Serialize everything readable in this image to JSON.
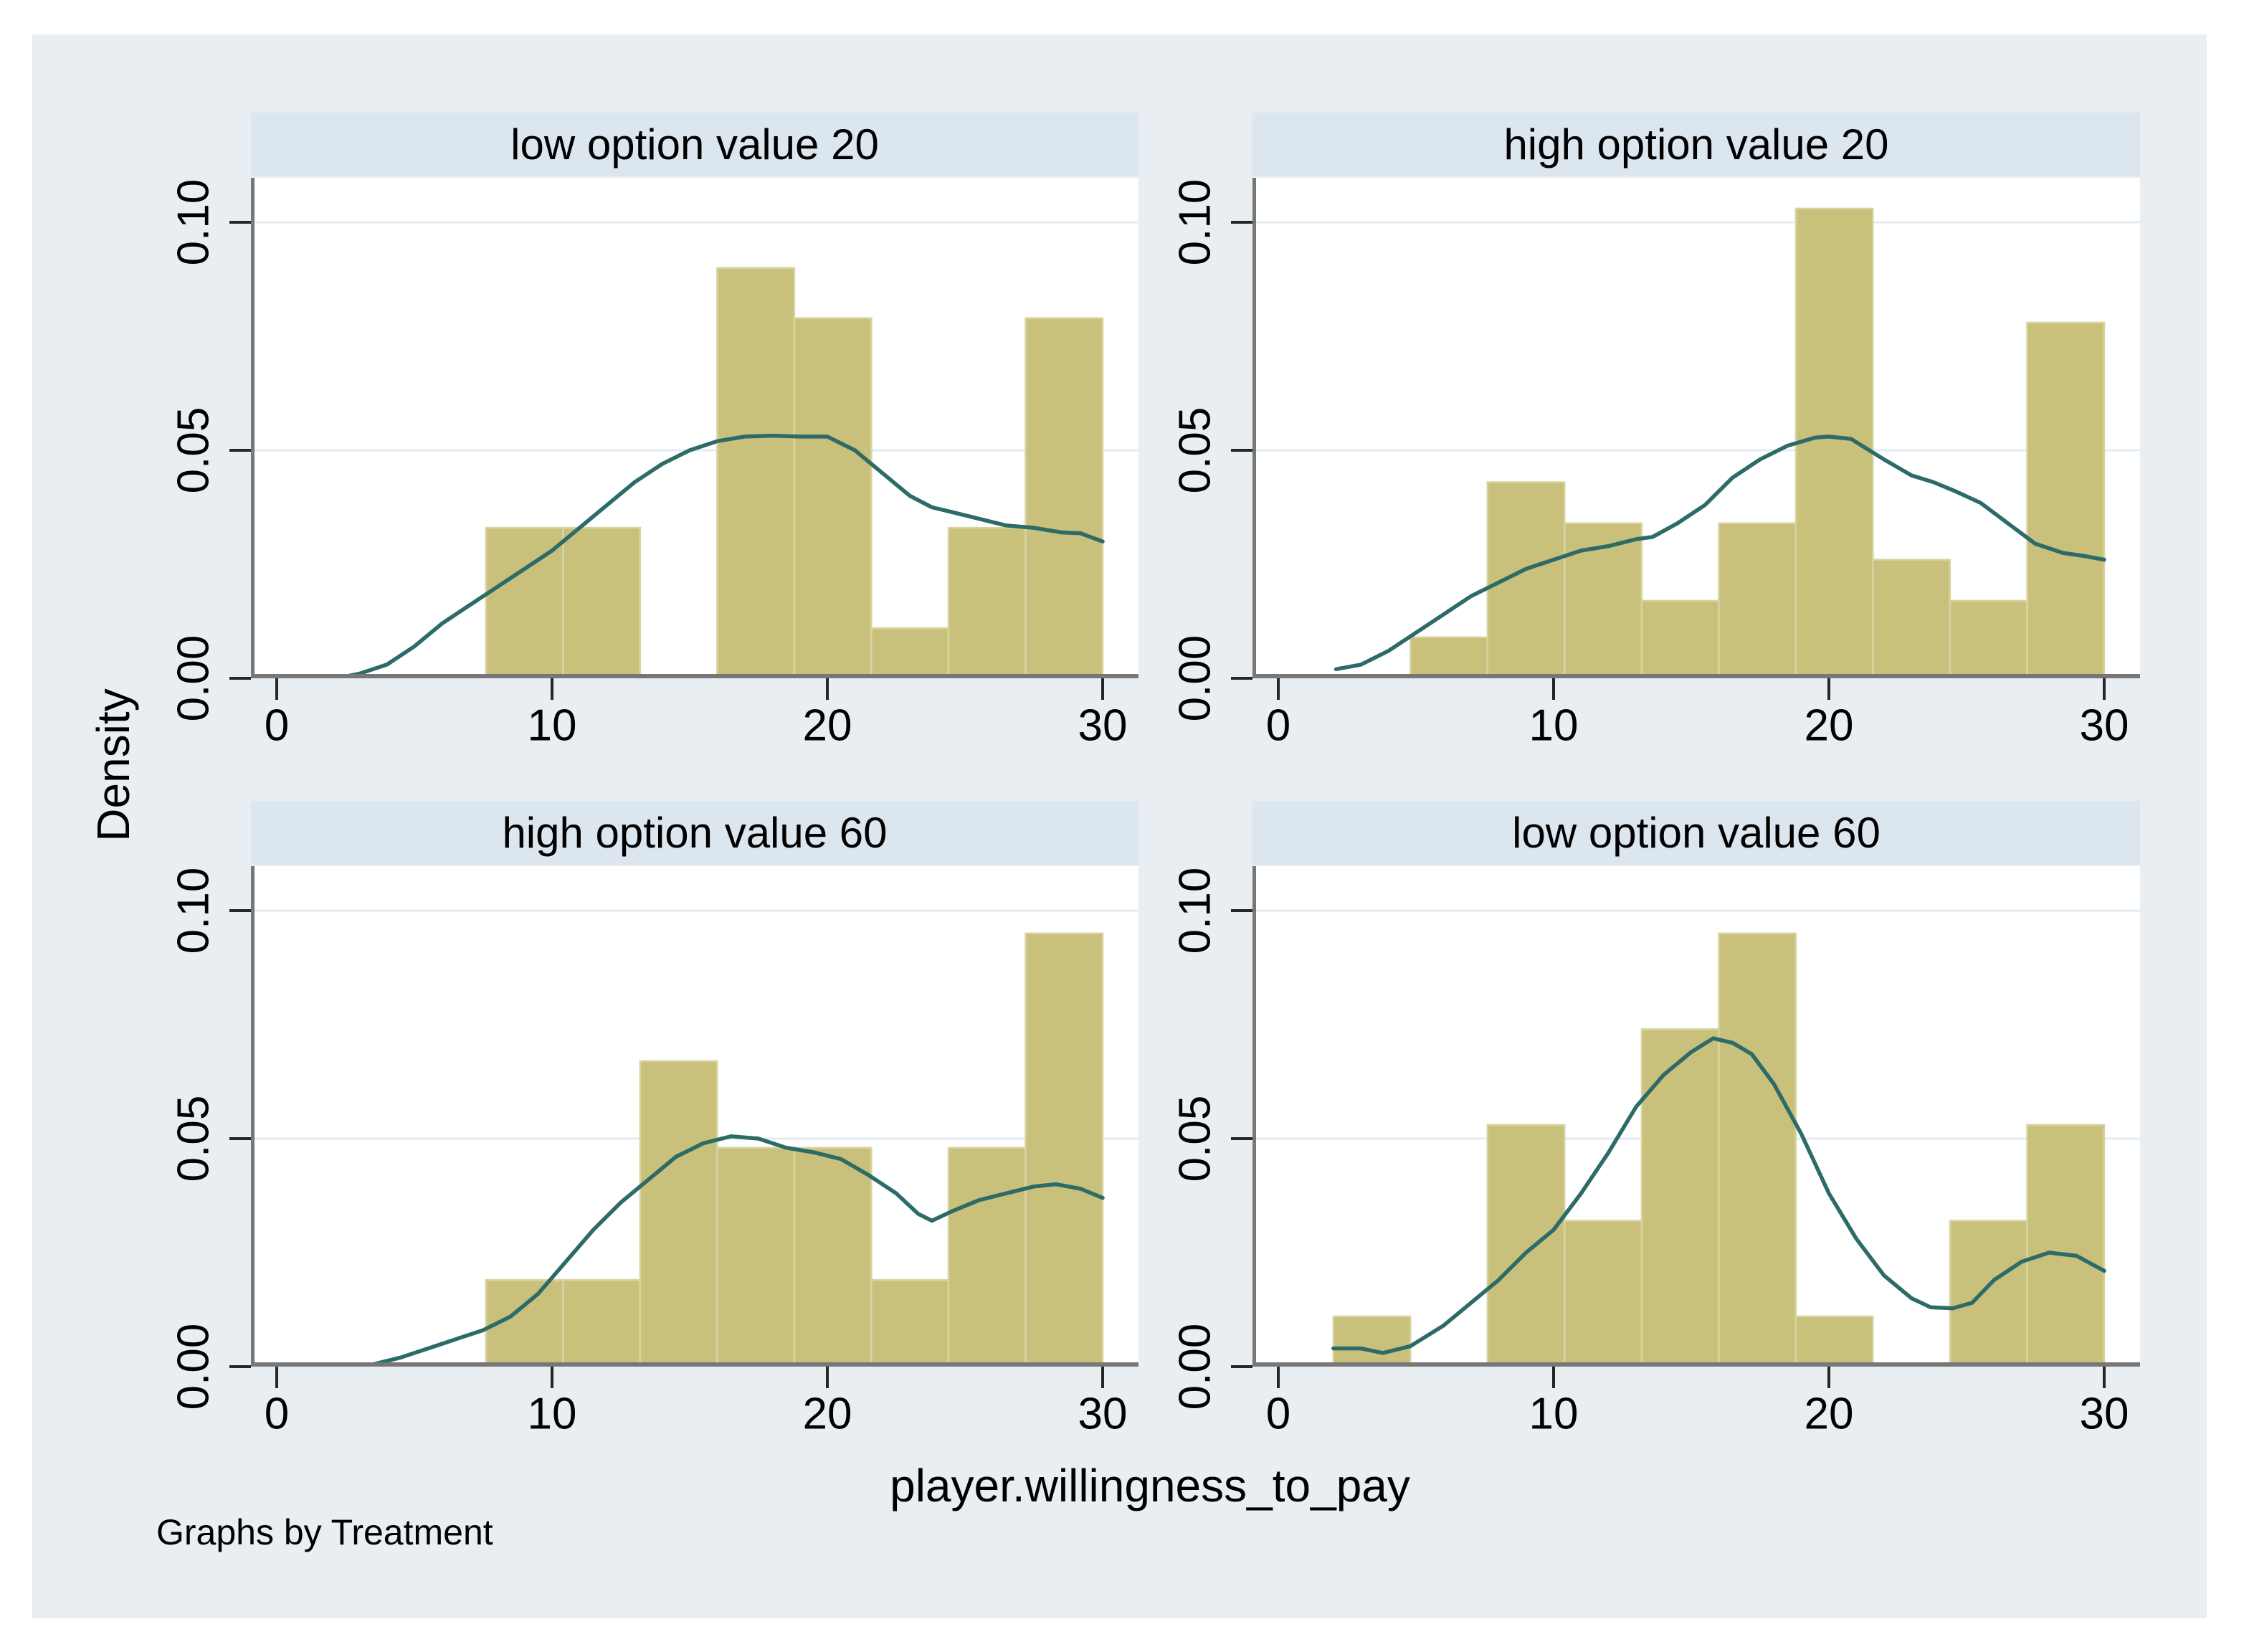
{
  "figure": {
    "ylabel": "Density",
    "xlabel": "player.willingness_to_pay",
    "note": "Graphs by Treatment"
  },
  "colors": {
    "background": "#e9eef2",
    "strip": "#dce6ee",
    "plot_background": "#ffffff",
    "bar": "#c9c17b",
    "bar_edge": "#d8d4a2",
    "line": "#2d6b69",
    "grid": "#e2edf3",
    "axis": "#777777",
    "tick": "#262626",
    "text": "#000000"
  },
  "chart_data": {
    "type": "bar",
    "subtype": "histogram-with-kernel-density-overlay",
    "xlabel": "player.willingness_to_pay",
    "ylabel": "Density",
    "by_note": "Graphs by Treatment",
    "xlim": [
      -1,
      31
    ],
    "ylim": [
      0,
      0.11
    ],
    "x_ticks": [
      0,
      10,
      20,
      30
    ],
    "y_ticks": [
      0,
      0.05,
      0.1
    ],
    "y_tick_labels": [
      "0.00",
      "0.05",
      "0.10"
    ],
    "grid": "horizontal-only",
    "legend": "none",
    "bin_start": 2,
    "bin_width": 2.8,
    "panels": [
      {
        "title": "low option value 20",
        "position": "top-left",
        "bin_heights": [
          0,
          0,
          0.033,
          0.033,
          0,
          0.09,
          0.079,
          0.011,
          0.033,
          0.079
        ],
        "kde": [
          [
            2.2,
            0
          ],
          [
            3,
            0.001
          ],
          [
            4,
            0.003
          ],
          [
            5,
            0.007
          ],
          [
            6,
            0.012
          ],
          [
            7,
            0.016
          ],
          [
            8,
            0.02
          ],
          [
            9,
            0.024
          ],
          [
            10,
            0.028
          ],
          [
            11,
            0.033
          ],
          [
            12,
            0.038
          ],
          [
            13,
            0.043
          ],
          [
            14,
            0.047
          ],
          [
            15,
            0.05
          ],
          [
            16,
            0.052
          ],
          [
            17,
            0.053
          ],
          [
            18,
            0.0532
          ],
          [
            19,
            0.053
          ],
          [
            20,
            0.053
          ],
          [
            21,
            0.05
          ],
          [
            22,
            0.045
          ],
          [
            23,
            0.04
          ],
          [
            23.8,
            0.0375
          ],
          [
            24.5,
            0.0365
          ],
          [
            25.5,
            0.035
          ],
          [
            26.5,
            0.0335
          ],
          [
            27.5,
            0.033
          ],
          [
            28.5,
            0.032
          ],
          [
            29.2,
            0.0318
          ],
          [
            30,
            0.03
          ]
        ]
      },
      {
        "title": "high option value 20",
        "position": "top-right",
        "bin_heights": [
          0,
          0.009,
          0.043,
          0.034,
          0.017,
          0.034,
          0.103,
          0.026,
          0.017,
          0.078
        ],
        "kde": [
          [
            2.1,
            0.002
          ],
          [
            3,
            0.003
          ],
          [
            4,
            0.006
          ],
          [
            5,
            0.01
          ],
          [
            6,
            0.014
          ],
          [
            7,
            0.018
          ],
          [
            8,
            0.021
          ],
          [
            9,
            0.024
          ],
          [
            10,
            0.026
          ],
          [
            11,
            0.028
          ],
          [
            12,
            0.029
          ],
          [
            13,
            0.0305
          ],
          [
            13.6,
            0.031
          ],
          [
            14.5,
            0.034
          ],
          [
            15.5,
            0.038
          ],
          [
            16.5,
            0.044
          ],
          [
            17.5,
            0.048
          ],
          [
            18.5,
            0.051
          ],
          [
            19.5,
            0.0528
          ],
          [
            20,
            0.053
          ],
          [
            20.8,
            0.0525
          ],
          [
            22,
            0.048
          ],
          [
            23,
            0.0445
          ],
          [
            23.8,
            0.043
          ],
          [
            24.6,
            0.041
          ],
          [
            25.5,
            0.0385
          ],
          [
            26.5,
            0.034
          ],
          [
            27.5,
            0.0295
          ],
          [
            28.5,
            0.0275
          ],
          [
            29.3,
            0.0268
          ],
          [
            30,
            0.026
          ]
        ]
      },
      {
        "title": "high option value 60",
        "position": "bottom-left",
        "bin_heights": [
          0,
          0,
          0.019,
          0.019,
          0.067,
          0.048,
          0.048,
          0.019,
          0.048,
          0.095
        ],
        "kde": [
          [
            2.3,
            0
          ],
          [
            3.5,
            0.0005
          ],
          [
            4.5,
            0.002
          ],
          [
            5.5,
            0.004
          ],
          [
            6.5,
            0.006
          ],
          [
            7.5,
            0.008
          ],
          [
            8.5,
            0.011
          ],
          [
            9.5,
            0.016
          ],
          [
            10.5,
            0.023
          ],
          [
            11.5,
            0.03
          ],
          [
            12.5,
            0.036
          ],
          [
            13.5,
            0.041
          ],
          [
            14.5,
            0.046
          ],
          [
            15.5,
            0.049
          ],
          [
            16.5,
            0.0505
          ],
          [
            17.5,
            0.05
          ],
          [
            18.5,
            0.048
          ],
          [
            19.5,
            0.047
          ],
          [
            20.5,
            0.0455
          ],
          [
            21.5,
            0.042
          ],
          [
            22.5,
            0.038
          ],
          [
            23.3,
            0.0335
          ],
          [
            23.8,
            0.032
          ],
          [
            24.5,
            0.034
          ],
          [
            25.5,
            0.0365
          ],
          [
            26.5,
            0.038
          ],
          [
            27.5,
            0.0395
          ],
          [
            28.3,
            0.04
          ],
          [
            29.2,
            0.039
          ],
          [
            30,
            0.037
          ]
        ]
      },
      {
        "title": "low option value 60",
        "position": "bottom-right",
        "bin_heights": [
          0.011,
          0,
          0.053,
          0.032,
          0.074,
          0.095,
          0.011,
          0,
          0.032,
          0.053
        ],
        "kde": [
          [
            2,
            0.004
          ],
          [
            3,
            0.004
          ],
          [
            3.8,
            0.003
          ],
          [
            4.8,
            0.0045
          ],
          [
            6,
            0.009
          ],
          [
            7,
            0.014
          ],
          [
            8,
            0.019
          ],
          [
            9,
            0.025
          ],
          [
            10,
            0.03
          ],
          [
            11,
            0.038
          ],
          [
            12,
            0.047
          ],
          [
            13,
            0.057
          ],
          [
            14,
            0.064
          ],
          [
            15,
            0.069
          ],
          [
            15.8,
            0.072
          ],
          [
            16.5,
            0.071
          ],
          [
            17.2,
            0.0685
          ],
          [
            18,
            0.062
          ],
          [
            19,
            0.051
          ],
          [
            20,
            0.038
          ],
          [
            21,
            0.028
          ],
          [
            22,
            0.02
          ],
          [
            23,
            0.015
          ],
          [
            23.7,
            0.013
          ],
          [
            24.5,
            0.0128
          ],
          [
            25.2,
            0.014
          ],
          [
            26,
            0.019
          ],
          [
            27,
            0.023
          ],
          [
            28,
            0.025
          ],
          [
            29,
            0.0243
          ],
          [
            30,
            0.021
          ]
        ]
      }
    ]
  }
}
